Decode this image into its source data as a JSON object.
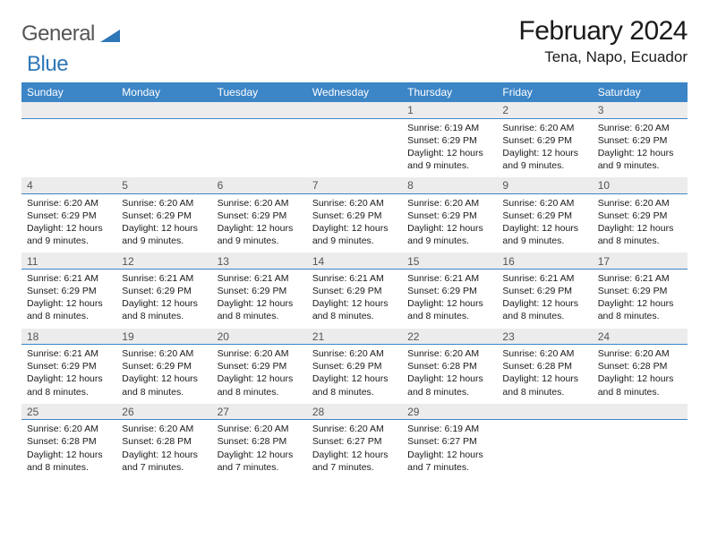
{
  "logo": {
    "word1": "General",
    "word2": "Blue"
  },
  "title": "February 2024",
  "location": "Tena, Napo, Ecuador",
  "colors": {
    "header_bg": "#3c85c6",
    "header_text": "#ffffff",
    "daynum_bg": "#ececec",
    "daynum_text": "#555555",
    "daynum_rule": "#3c85c6",
    "body_text": "#1a1a1a",
    "logo_gray": "#555555",
    "logo_blue": "#2e77b8"
  },
  "weekdays": [
    "Sunday",
    "Monday",
    "Tuesday",
    "Wednesday",
    "Thursday",
    "Friday",
    "Saturday"
  ],
  "weeks": [
    {
      "days": [
        {
          "num": "",
          "sunrise": "",
          "sunset": "",
          "daylight": ""
        },
        {
          "num": "",
          "sunrise": "",
          "sunset": "",
          "daylight": ""
        },
        {
          "num": "",
          "sunrise": "",
          "sunset": "",
          "daylight": ""
        },
        {
          "num": "",
          "sunrise": "",
          "sunset": "",
          "daylight": ""
        },
        {
          "num": "1",
          "sunrise": "Sunrise: 6:19 AM",
          "sunset": "Sunset: 6:29 PM",
          "daylight": "Daylight: 12 hours and 9 minutes."
        },
        {
          "num": "2",
          "sunrise": "Sunrise: 6:20 AM",
          "sunset": "Sunset: 6:29 PM",
          "daylight": "Daylight: 12 hours and 9 minutes."
        },
        {
          "num": "3",
          "sunrise": "Sunrise: 6:20 AM",
          "sunset": "Sunset: 6:29 PM",
          "daylight": "Daylight: 12 hours and 9 minutes."
        }
      ]
    },
    {
      "days": [
        {
          "num": "4",
          "sunrise": "Sunrise: 6:20 AM",
          "sunset": "Sunset: 6:29 PM",
          "daylight": "Daylight: 12 hours and 9 minutes."
        },
        {
          "num": "5",
          "sunrise": "Sunrise: 6:20 AM",
          "sunset": "Sunset: 6:29 PM",
          "daylight": "Daylight: 12 hours and 9 minutes."
        },
        {
          "num": "6",
          "sunrise": "Sunrise: 6:20 AM",
          "sunset": "Sunset: 6:29 PM",
          "daylight": "Daylight: 12 hours and 9 minutes."
        },
        {
          "num": "7",
          "sunrise": "Sunrise: 6:20 AM",
          "sunset": "Sunset: 6:29 PM",
          "daylight": "Daylight: 12 hours and 9 minutes."
        },
        {
          "num": "8",
          "sunrise": "Sunrise: 6:20 AM",
          "sunset": "Sunset: 6:29 PM",
          "daylight": "Daylight: 12 hours and 9 minutes."
        },
        {
          "num": "9",
          "sunrise": "Sunrise: 6:20 AM",
          "sunset": "Sunset: 6:29 PM",
          "daylight": "Daylight: 12 hours and 9 minutes."
        },
        {
          "num": "10",
          "sunrise": "Sunrise: 6:20 AM",
          "sunset": "Sunset: 6:29 PM",
          "daylight": "Daylight: 12 hours and 8 minutes."
        }
      ]
    },
    {
      "days": [
        {
          "num": "11",
          "sunrise": "Sunrise: 6:21 AM",
          "sunset": "Sunset: 6:29 PM",
          "daylight": "Daylight: 12 hours and 8 minutes."
        },
        {
          "num": "12",
          "sunrise": "Sunrise: 6:21 AM",
          "sunset": "Sunset: 6:29 PM",
          "daylight": "Daylight: 12 hours and 8 minutes."
        },
        {
          "num": "13",
          "sunrise": "Sunrise: 6:21 AM",
          "sunset": "Sunset: 6:29 PM",
          "daylight": "Daylight: 12 hours and 8 minutes."
        },
        {
          "num": "14",
          "sunrise": "Sunrise: 6:21 AM",
          "sunset": "Sunset: 6:29 PM",
          "daylight": "Daylight: 12 hours and 8 minutes."
        },
        {
          "num": "15",
          "sunrise": "Sunrise: 6:21 AM",
          "sunset": "Sunset: 6:29 PM",
          "daylight": "Daylight: 12 hours and 8 minutes."
        },
        {
          "num": "16",
          "sunrise": "Sunrise: 6:21 AM",
          "sunset": "Sunset: 6:29 PM",
          "daylight": "Daylight: 12 hours and 8 minutes."
        },
        {
          "num": "17",
          "sunrise": "Sunrise: 6:21 AM",
          "sunset": "Sunset: 6:29 PM",
          "daylight": "Daylight: 12 hours and 8 minutes."
        }
      ]
    },
    {
      "days": [
        {
          "num": "18",
          "sunrise": "Sunrise: 6:21 AM",
          "sunset": "Sunset: 6:29 PM",
          "daylight": "Daylight: 12 hours and 8 minutes."
        },
        {
          "num": "19",
          "sunrise": "Sunrise: 6:20 AM",
          "sunset": "Sunset: 6:29 PM",
          "daylight": "Daylight: 12 hours and 8 minutes."
        },
        {
          "num": "20",
          "sunrise": "Sunrise: 6:20 AM",
          "sunset": "Sunset: 6:29 PM",
          "daylight": "Daylight: 12 hours and 8 minutes."
        },
        {
          "num": "21",
          "sunrise": "Sunrise: 6:20 AM",
          "sunset": "Sunset: 6:29 PM",
          "daylight": "Daylight: 12 hours and 8 minutes."
        },
        {
          "num": "22",
          "sunrise": "Sunrise: 6:20 AM",
          "sunset": "Sunset: 6:28 PM",
          "daylight": "Daylight: 12 hours and 8 minutes."
        },
        {
          "num": "23",
          "sunrise": "Sunrise: 6:20 AM",
          "sunset": "Sunset: 6:28 PM",
          "daylight": "Daylight: 12 hours and 8 minutes."
        },
        {
          "num": "24",
          "sunrise": "Sunrise: 6:20 AM",
          "sunset": "Sunset: 6:28 PM",
          "daylight": "Daylight: 12 hours and 8 minutes."
        }
      ]
    },
    {
      "days": [
        {
          "num": "25",
          "sunrise": "Sunrise: 6:20 AM",
          "sunset": "Sunset: 6:28 PM",
          "daylight": "Daylight: 12 hours and 8 minutes."
        },
        {
          "num": "26",
          "sunrise": "Sunrise: 6:20 AM",
          "sunset": "Sunset: 6:28 PM",
          "daylight": "Daylight: 12 hours and 7 minutes."
        },
        {
          "num": "27",
          "sunrise": "Sunrise: 6:20 AM",
          "sunset": "Sunset: 6:28 PM",
          "daylight": "Daylight: 12 hours and 7 minutes."
        },
        {
          "num": "28",
          "sunrise": "Sunrise: 6:20 AM",
          "sunset": "Sunset: 6:27 PM",
          "daylight": "Daylight: 12 hours and 7 minutes."
        },
        {
          "num": "29",
          "sunrise": "Sunrise: 6:19 AM",
          "sunset": "Sunset: 6:27 PM",
          "daylight": "Daylight: 12 hours and 7 minutes."
        },
        {
          "num": "",
          "sunrise": "",
          "sunset": "",
          "daylight": ""
        },
        {
          "num": "",
          "sunrise": "",
          "sunset": "",
          "daylight": ""
        }
      ]
    }
  ]
}
